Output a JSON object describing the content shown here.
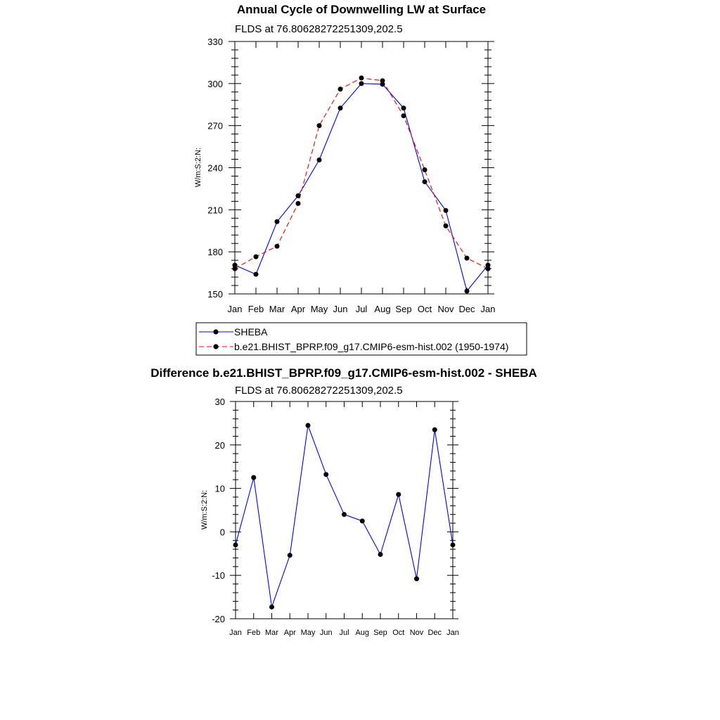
{
  "chart_data": [
    {
      "type": "line",
      "title": "Annual Cycle of Downwelling LW at Surface",
      "subtitle": "FLDS at 76.80628272251309,202.5",
      "ylabel": "W/m:S:2:N:",
      "xlabel": "",
      "categories": [
        "Jan",
        "Feb",
        "Mar",
        "Apr",
        "May",
        "Jun",
        "Jul",
        "Aug",
        "Sep",
        "Oct",
        "Nov",
        "Dec",
        "Jan"
      ],
      "ylim": [
        150,
        330
      ],
      "yticks": [
        "150",
        "180",
        "210",
        "240",
        "270",
        "300",
        "330"
      ],
      "grid": false,
      "legend_position": "bottom",
      "series": [
        {
          "name": "SHEBA",
          "color": "#0000ff",
          "dash": "solid",
          "marker": "dot",
          "values": [
            170.5,
            164,
            201.5,
            220,
            245.5,
            282.5,
            300,
            299.5,
            282.5,
            230,
            209.5,
            152,
            170.5
          ]
        },
        {
          "name": "b.e21.BHIST_BPRP.f09_g17.CMIP6-esm-hist.002 (1950-1974)",
          "color": "#ff0000",
          "dash": "dashed",
          "marker": "dot",
          "values": [
            168,
            176.5,
            184,
            214.5,
            270,
            296,
            304,
            302,
            277,
            238.5,
            198.5,
            175.5,
            168
          ]
        }
      ]
    },
    {
      "type": "line",
      "title": "Difference b.e21.BHIST_BPRP.f09_g17.CMIP6-esm-hist.002 - SHEBA",
      "subtitle": "FLDS at 76.80628272251309,202.5",
      "ylabel": "W/m:S:2:N:",
      "xlabel": "",
      "categories": [
        "Jan",
        "Feb",
        "Mar",
        "Apr",
        "May",
        "Jun",
        "Jul",
        "Aug",
        "Sep",
        "Oct",
        "Nov",
        "Dec",
        "Jan"
      ],
      "ylim": [
        -20,
        30
      ],
      "yticks": [
        "-20",
        "-10",
        "0",
        "10",
        "20",
        "30"
      ],
      "grid": false,
      "series": [
        {
          "color": "#0000ff",
          "dash": "solid",
          "marker": "dot",
          "values": [
            -3,
            12.5,
            -17.3,
            -5.4,
            24.5,
            13.2,
            4.0,
            2.5,
            -5.2,
            8.6,
            -10.8,
            23.5,
            -3
          ]
        }
      ]
    }
  ]
}
